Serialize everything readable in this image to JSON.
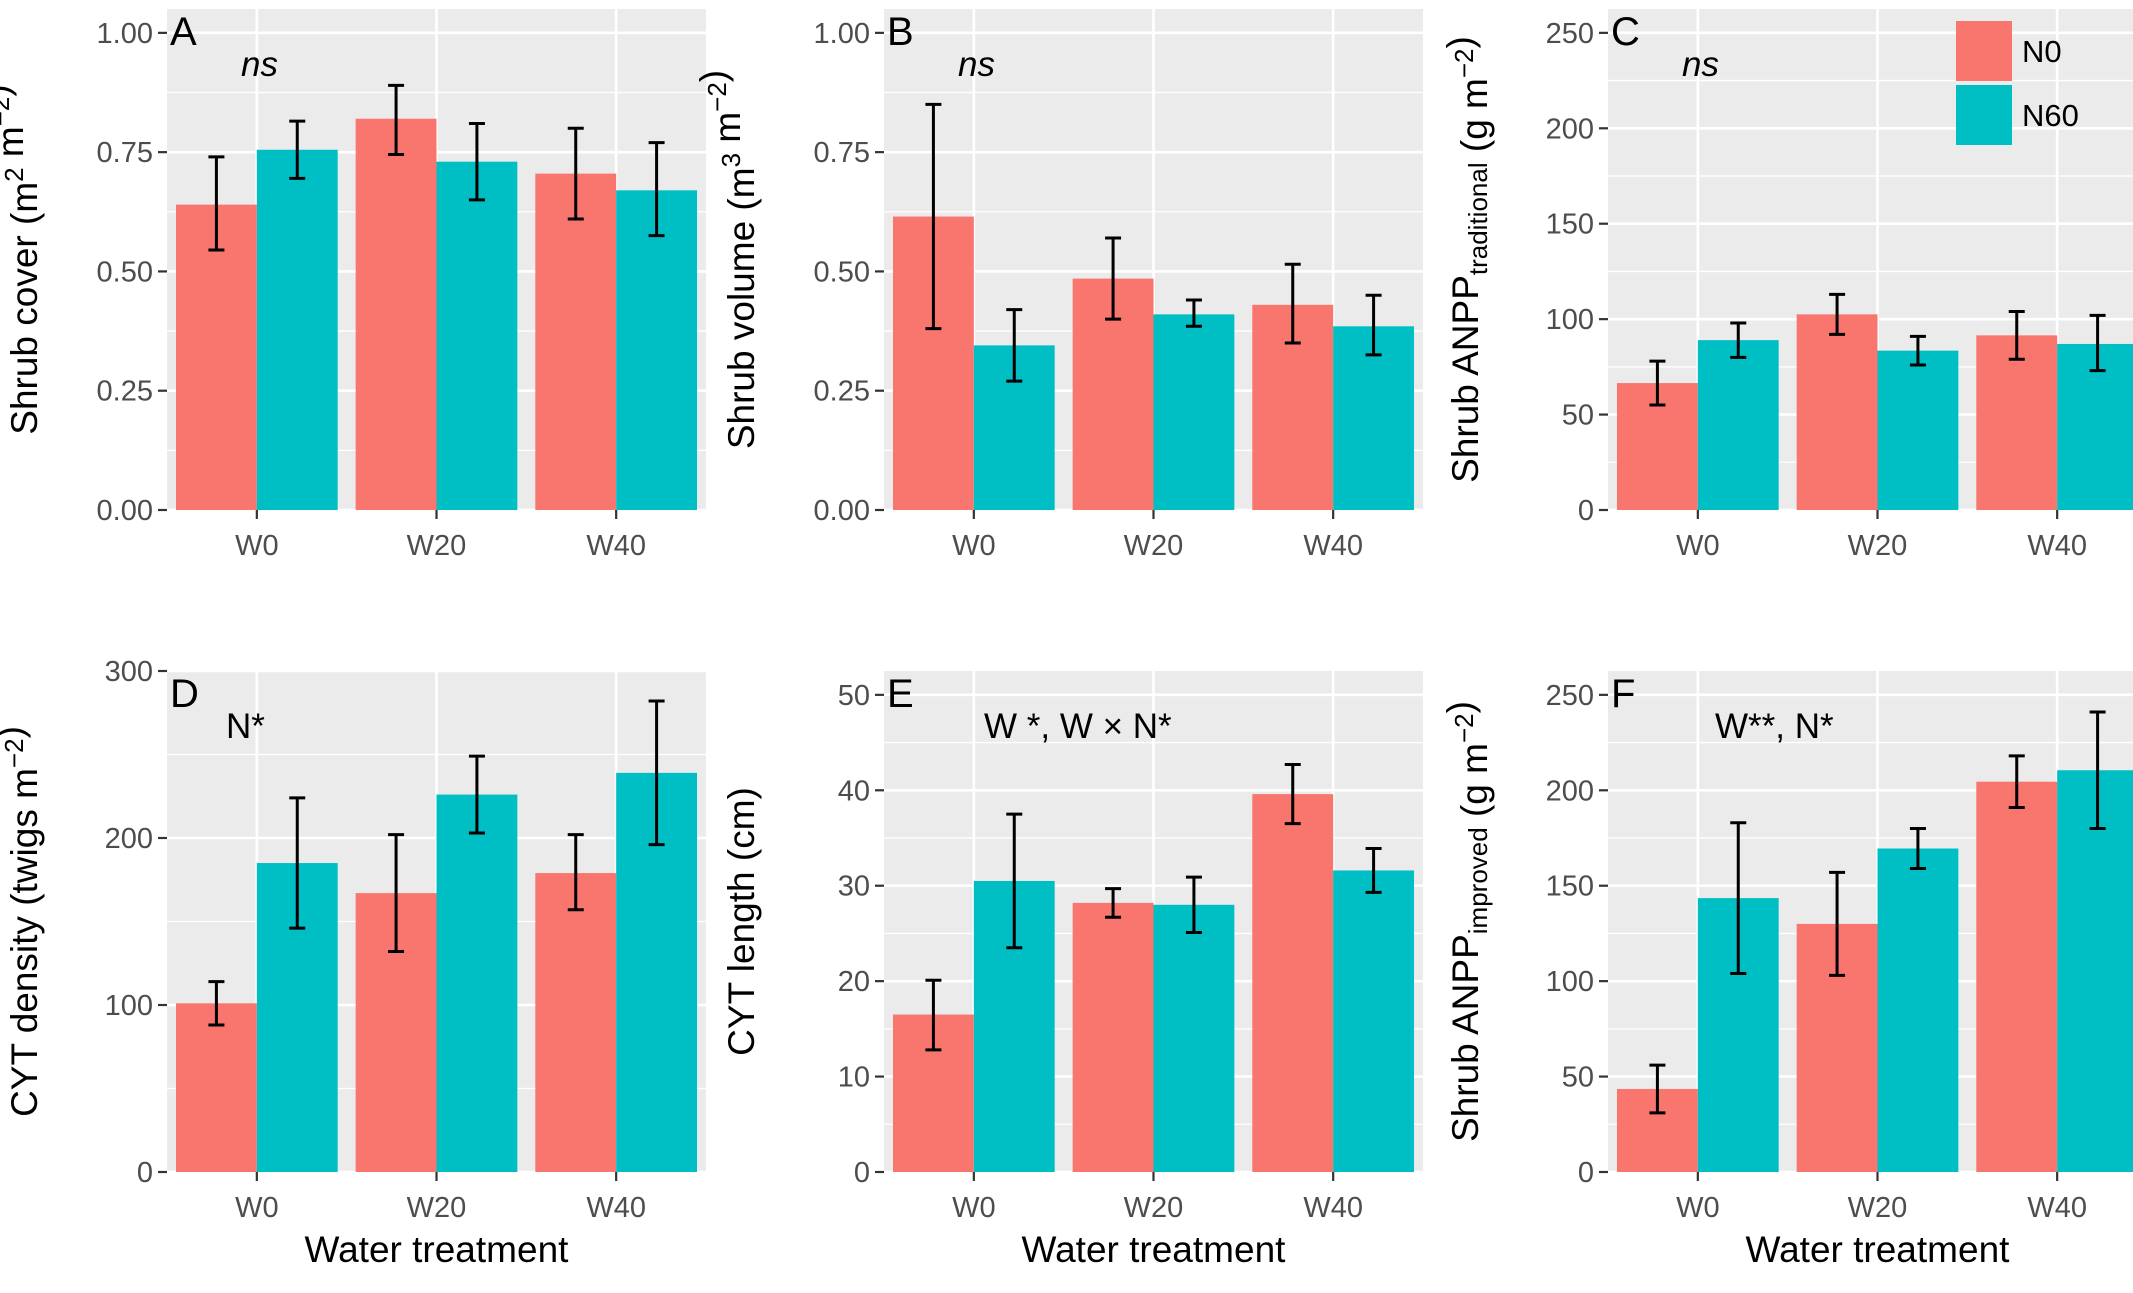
{
  "figure": {
    "legend": {
      "entries": [
        {
          "name": "N0",
          "color": "#F8766D"
        },
        {
          "name": "N60",
          "color": "#00BFC4"
        }
      ]
    },
    "colors": {
      "panel_bg": "#EBEBEB",
      "grid": "#FFFFFF",
      "tick": "#333333",
      "tick_label": "#4D4D4D",
      "error_bar": "#000000"
    }
  },
  "chart_data": [
    {
      "panel": "A",
      "type": "bar",
      "annotation": "ns",
      "annotation_italic": true,
      "title": "",
      "xlabel": "",
      "ylabel": "Shrub cover (m² m⁻²)",
      "ylabel_parts": [
        {
          "t": "Shrub cover (m"
        },
        {
          "t": "2",
          "sup": true
        },
        {
          "t": " m"
        },
        {
          "t": "−2",
          "sup": true
        },
        {
          "t": ")"
        }
      ],
      "categories": [
        "W0",
        "W20",
        "W40"
      ],
      "ylim": [
        0,
        1.05
      ],
      "yticks": [
        0,
        0.25,
        0.5,
        0.75,
        1.0
      ],
      "ytick_labels": [
        "0.00",
        "0.25",
        "0.50",
        "0.75",
        "1.00"
      ],
      "series": [
        {
          "name": "N0",
          "values": [
            0.64,
            0.82,
            0.705
          ],
          "err_low": [
            0.545,
            0.745,
            0.61
          ],
          "err_high": [
            0.74,
            0.89,
            0.8
          ]
        },
        {
          "name": "N60",
          "values": [
            0.755,
            0.73,
            0.67
          ],
          "err_low": [
            0.695,
            0.65,
            0.575
          ],
          "err_high": [
            0.815,
            0.81,
            0.77
          ]
        }
      ]
    },
    {
      "panel": "B",
      "type": "bar",
      "annotation": "ns",
      "annotation_italic": true,
      "title": "",
      "xlabel": "",
      "ylabel": "Shrub volume (m³ m⁻²)",
      "ylabel_parts": [
        {
          "t": "Shrub volume (m"
        },
        {
          "t": "3",
          "sup": true
        },
        {
          "t": " m"
        },
        {
          "t": "−2",
          "sup": true
        },
        {
          "t": ")"
        }
      ],
      "categories": [
        "W0",
        "W20",
        "W40"
      ],
      "ylim": [
        0,
        1.05
      ],
      "yticks": [
        0,
        0.25,
        0.5,
        0.75,
        1.0
      ],
      "ytick_labels": [
        "0.00",
        "0.25",
        "0.50",
        "0.75",
        "1.00"
      ],
      "series": [
        {
          "name": "N0",
          "values": [
            0.615,
            0.485,
            0.43
          ],
          "err_low": [
            0.38,
            0.4,
            0.35
          ],
          "err_high": [
            0.85,
            0.57,
            0.515
          ]
        },
        {
          "name": "N60",
          "values": [
            0.345,
            0.41,
            0.385
          ],
          "err_low": [
            0.27,
            0.385,
            0.325
          ],
          "err_high": [
            0.42,
            0.44,
            0.45
          ]
        }
      ]
    },
    {
      "panel": "C",
      "type": "bar",
      "annotation": "ns",
      "annotation_italic": true,
      "title": "",
      "xlabel": "",
      "ylabel": "Shrub ANPP traditional (g m⁻²)",
      "ylabel_parts": [
        {
          "t": "Shrub ANPP"
        },
        {
          "t": "traditional",
          "sub": true
        },
        {
          "t": " (g m"
        },
        {
          "t": "−2",
          "sup": true
        },
        {
          "t": ")"
        }
      ],
      "categories": [
        "W0",
        "W20",
        "W40"
      ],
      "ylim": [
        0,
        262.5
      ],
      "yticks": [
        0,
        50,
        100,
        150,
        200,
        250
      ],
      "ytick_labels": [
        "0",
        "50",
        "100",
        "150",
        "200",
        "250"
      ],
      "series": [
        {
          "name": "N0",
          "values": [
            66.5,
            102.5,
            91.5
          ],
          "err_low": [
            55,
            92,
            79
          ],
          "err_high": [
            78,
            113,
            104
          ]
        },
        {
          "name": "N60",
          "values": [
            89,
            83.5,
            87
          ],
          "err_low": [
            80,
            76,
            73
          ],
          "err_high": [
            98,
            91,
            102
          ]
        }
      ]
    },
    {
      "panel": "D",
      "type": "bar",
      "annotation": "N*",
      "annotation_italic": false,
      "title": "",
      "xlabel": "Water treatment",
      "ylabel": "CYT density (twigs m⁻²)",
      "ylabel_parts": [
        {
          "t": "CYT density (twigs m"
        },
        {
          "t": "−2",
          "sup": true
        },
        {
          "t": ")"
        }
      ],
      "categories": [
        "W0",
        "W20",
        "W40"
      ],
      "ylim": [
        0,
        300
      ],
      "yticks": [
        0,
        100,
        200,
        300
      ],
      "ytick_labels": [
        "0",
        "100",
        "200",
        "300"
      ],
      "series": [
        {
          "name": "N0",
          "values": [
            101,
            167,
            179
          ],
          "err_low": [
            88,
            132,
            157
          ],
          "err_high": [
            114,
            202,
            202
          ]
        },
        {
          "name": "N60",
          "values": [
            185,
            226,
            239
          ],
          "err_low": [
            146,
            203,
            196
          ],
          "err_high": [
            224,
            249,
            282
          ]
        }
      ]
    },
    {
      "panel": "E",
      "type": "bar",
      "annotation": "W *, W × N*",
      "annotation_italic": false,
      "title": "",
      "xlabel": "Water treatment",
      "ylabel": "CYT length (cm)",
      "ylabel_parts": [
        {
          "t": "CYT length (cm)"
        }
      ],
      "categories": [
        "W0",
        "W20",
        "W40"
      ],
      "ylim": [
        0,
        52.5
      ],
      "yticks": [
        0,
        10,
        20,
        30,
        40,
        50
      ],
      "ytick_labels": [
        "0",
        "10",
        "20",
        "30",
        "40",
        "50"
      ],
      "series": [
        {
          "name": "N0",
          "values": [
            16.5,
            28.2,
            39.6
          ],
          "err_low": [
            12.8,
            26.7,
            36.5
          ],
          "err_high": [
            20.1,
            29.7,
            42.7
          ]
        },
        {
          "name": "N60",
          "values": [
            30.5,
            28.0,
            31.6
          ],
          "err_low": [
            23.5,
            25.1,
            29.3
          ],
          "err_high": [
            37.5,
            30.9,
            33.9
          ]
        }
      ]
    },
    {
      "panel": "F",
      "type": "bar",
      "annotation": "W**, N*",
      "annotation_italic": false,
      "title": "",
      "xlabel": "Water treatment",
      "ylabel": "Shrub ANPP improved (g m⁻²)",
      "ylabel_parts": [
        {
          "t": "Shrub ANPP"
        },
        {
          "t": "improved",
          "sub": true
        },
        {
          "t": " (g m"
        },
        {
          "t": "−2",
          "sup": true
        },
        {
          "t": ")"
        }
      ],
      "categories": [
        "W0",
        "W20",
        "W40"
      ],
      "ylim": [
        0,
        262.5
      ],
      "yticks": [
        0,
        50,
        100,
        150,
        200,
        250
      ],
      "ytick_labels": [
        "0",
        "50",
        "100",
        "150",
        "200",
        "250"
      ],
      "series": [
        {
          "name": "N0",
          "values": [
            43.5,
            130,
            204.5
          ],
          "err_low": [
            31,
            103,
            191
          ],
          "err_high": [
            56,
            157,
            218
          ]
        },
        {
          "name": "N60",
          "values": [
            143.5,
            169.5,
            210.5
          ],
          "err_low": [
            104,
            159,
            180
          ],
          "err_high": [
            183,
            180,
            241
          ]
        }
      ]
    }
  ]
}
